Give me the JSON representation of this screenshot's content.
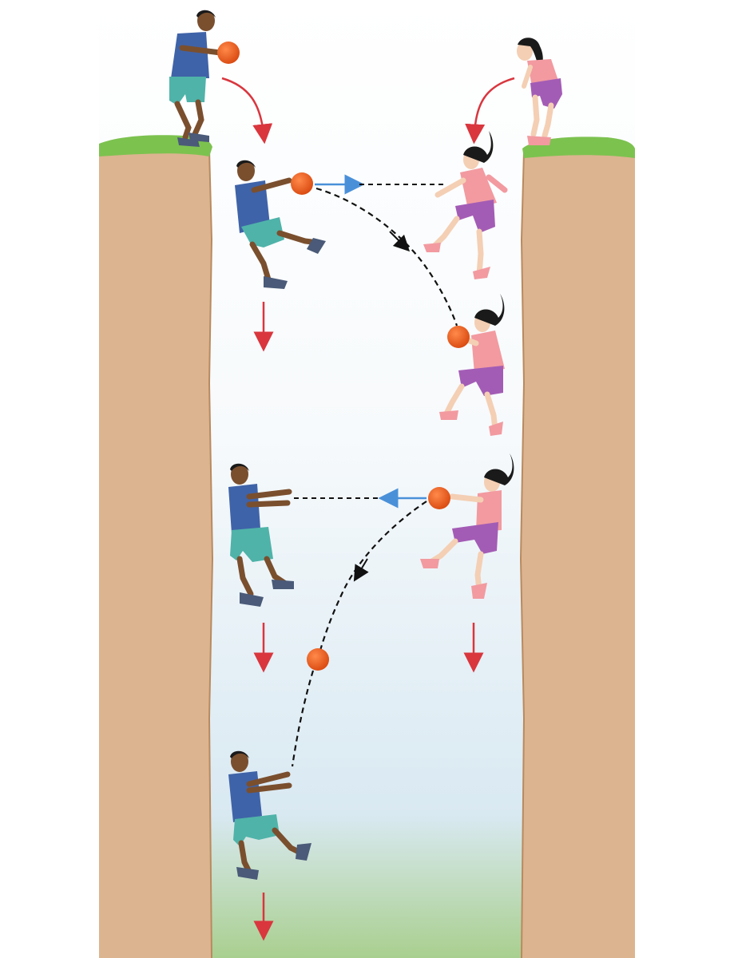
{
  "colors": {
    "background": "#ffffff",
    "sky_top": "#ffffff",
    "sky_bottom": "#d9e9f2",
    "ground_bottom": "#93c47d",
    "cliff": "#dcb48f",
    "cliff_edge": "#b88a60",
    "grass": "#7cc24f",
    "ball": "#ee5a1a",
    "gravity_arrow": "#d9363e",
    "velocity_arrow": "#4a90d9",
    "trajectory": "#111111",
    "man_shirt": "#3f63a8",
    "man_shorts": "#4fb3a9",
    "woman_top": "#f29aa0",
    "woman_shorts": "#a35cb5",
    "skin_man": "#7a4f2e",
    "skin_woman": "#f4cfb4",
    "hair": "#1a1a1a"
  },
  "scene": {
    "left_person": "man",
    "right_person": "woman",
    "object": "ball",
    "icons": [
      "ball-icon",
      "gravity-arrow-icon",
      "velocity-arrow-icon",
      "trajectory-curve-icon"
    ]
  }
}
